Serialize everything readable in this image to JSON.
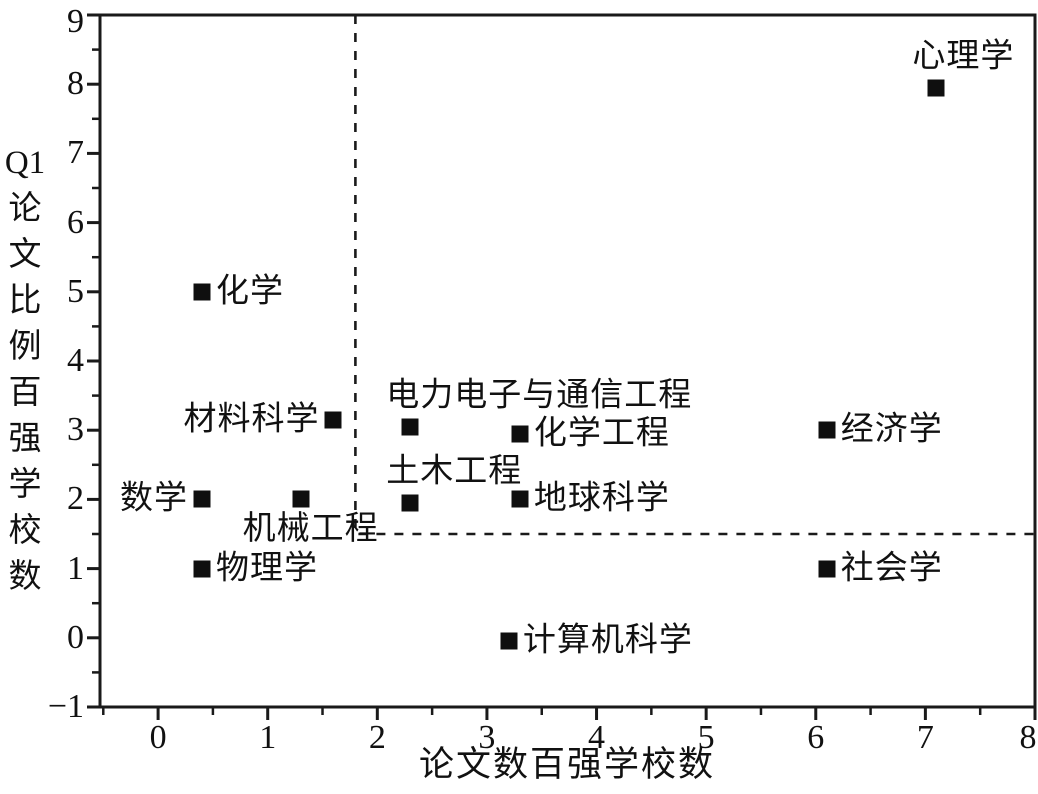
{
  "chart_data": {
    "type": "scatter",
    "title": "",
    "xlabel": "论文数百强学校数",
    "ylabel": "Q1论文比例百强学校数",
    "ylabel_lines": [
      "Q1",
      "论",
      "文",
      "比",
      "例",
      "百",
      "强",
      "学",
      "校",
      "数"
    ],
    "xlim": [
      -0.53,
      8
    ],
    "ylim": [
      -1,
      9
    ],
    "x_ticks": [
      0,
      1,
      2,
      3,
      4,
      5,
      6,
      7,
      8
    ],
    "y_ticks": [
      -1,
      0,
      1,
      2,
      3,
      4,
      5,
      6,
      7,
      8,
      9
    ],
    "minor_tick_step": 0.5,
    "grid": false,
    "legend": false,
    "marker_shape": "square",
    "colors": {
      "marker": "#0f0f0f",
      "axis": "#1a1a1a",
      "text": "#111111",
      "background": "#ffffff"
    },
    "points": [
      {
        "label": "心理学",
        "x": 7.1,
        "y": 7.95,
        "label_side": "above"
      },
      {
        "label": "化学",
        "x": 0.4,
        "y": 5.0,
        "label_side": "right"
      },
      {
        "label": "材料科学",
        "x": 1.6,
        "y": 3.15,
        "label_side": "left"
      },
      {
        "label": "电力电子与通信工程",
        "x": 2.3,
        "y": 3.05,
        "label_side": "above"
      },
      {
        "label": "化学工程",
        "x": 3.3,
        "y": 2.95,
        "label_side": "right"
      },
      {
        "label": "经济学",
        "x": 6.1,
        "y": 3.0,
        "label_side": "right"
      },
      {
        "label": "数学",
        "x": 0.4,
        "y": 2.0,
        "label_side": "left"
      },
      {
        "label": "机械工程",
        "x": 1.3,
        "y": 2.0,
        "label_side": "below"
      },
      {
        "label": "土木工程",
        "x": 2.3,
        "y": 1.95,
        "label_side": "above"
      },
      {
        "label": "地球科学",
        "x": 3.3,
        "y": 2.0,
        "label_side": "right"
      },
      {
        "label": "物理学",
        "x": 0.4,
        "y": 1.0,
        "label_side": "right"
      },
      {
        "label": "社会学",
        "x": 6.1,
        "y": 1.0,
        "label_side": "right"
      },
      {
        "label": "计算机科学",
        "x": 3.2,
        "y": -0.05,
        "label_side": "right"
      }
    ],
    "reference_lines": {
      "style": "dashed",
      "color": "#1a1a1a",
      "vertical": {
        "x": 1.8,
        "y_from": 1.5,
        "y_to": 9
      },
      "horizontal": {
        "y": 1.5,
        "x_from": 1.8,
        "x_to": 8
      }
    }
  }
}
